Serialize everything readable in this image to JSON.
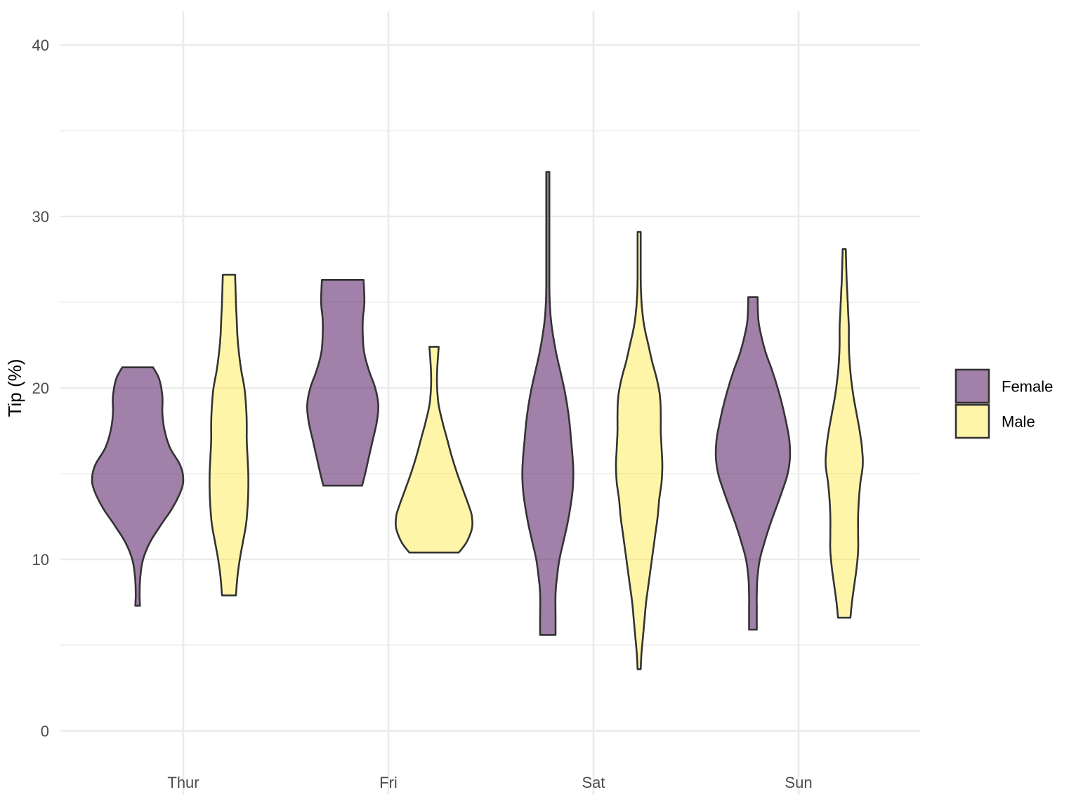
{
  "chart_data": {
    "type": "violin",
    "title": "",
    "xlabel": "",
    "ylabel": "Tip (%)",
    "ylim": [
      -2,
      42
    ],
    "y_ticks": [
      0,
      10,
      20,
      30,
      40
    ],
    "y_minor_ticks": [
      5,
      15,
      25,
      35
    ],
    "categories": [
      "Thur",
      "Fri",
      "Sat",
      "Sun"
    ],
    "grid": true,
    "legend_position": "right",
    "series": [
      {
        "name": "Female",
        "color": "#440154",
        "opacity": 0.5,
        "violins": [
          {
            "category": "Thur",
            "min": 7.3,
            "max": 21.2,
            "profile": [
              [
                7.3,
                0.03
              ],
              [
                8,
                0.025
              ],
              [
                9,
                0.035
              ],
              [
                10,
                0.07
              ],
              [
                11,
                0.16
              ],
              [
                12,
                0.3
              ],
              [
                13,
                0.45
              ],
              [
                14,
                0.56
              ],
              [
                14.7,
                0.59
              ],
              [
                15.5,
                0.55
              ],
              [
                16.5,
                0.42
              ],
              [
                17.5,
                0.35
              ],
              [
                18.5,
                0.32
              ],
              [
                19.5,
                0.32
              ],
              [
                20.5,
                0.28
              ],
              [
                21.2,
                0.2
              ]
            ]
          },
          {
            "category": "Fri",
            "min": 14.3,
            "max": 26.3,
            "profile": [
              [
                14.3,
                0.25
              ],
              [
                15,
                0.29
              ],
              [
                16,
                0.34
              ],
              [
                17,
                0.39
              ],
              [
                18,
                0.44
              ],
              [
                19,
                0.46
              ],
              [
                20,
                0.42
              ],
              [
                21,
                0.34
              ],
              [
                22,
                0.28
              ],
              [
                23,
                0.26
              ],
              [
                24,
                0.26
              ],
              [
                25,
                0.28
              ],
              [
                26.3,
                0.27
              ]
            ]
          },
          {
            "category": "Sat",
            "min": 5.6,
            "max": 32.6,
            "profile": [
              [
                5.6,
                0.1
              ],
              [
                6.5,
                0.1
              ],
              [
                8,
                0.1
              ],
              [
                9,
                0.12
              ],
              [
                10,
                0.15
              ],
              [
                11,
                0.2
              ],
              [
                12,
                0.25
              ],
              [
                13,
                0.29
              ],
              [
                14,
                0.32
              ],
              [
                15,
                0.33
              ],
              [
                16,
                0.32
              ],
              [
                17,
                0.3
              ],
              [
                18,
                0.28
              ],
              [
                19,
                0.25
              ],
              [
                20,
                0.21
              ],
              [
                21,
                0.16
              ],
              [
                22,
                0.11
              ],
              [
                23,
                0.07
              ],
              [
                24,
                0.04
              ],
              [
                25,
                0.025
              ],
              [
                26,
                0.02
              ],
              [
                28,
                0.02
              ],
              [
                30,
                0.02
              ],
              [
                32.6,
                0.02
              ]
            ]
          },
          {
            "category": "Sun",
            "min": 5.9,
            "max": 25.3,
            "profile": [
              [
                5.9,
                0.05
              ],
              [
                7,
                0.05
              ],
              [
                8,
                0.05
              ],
              [
                9,
                0.06
              ],
              [
                10,
                0.09
              ],
              [
                11,
                0.15
              ],
              [
                12,
                0.22
              ],
              [
                13,
                0.3
              ],
              [
                14,
                0.38
              ],
              [
                15,
                0.45
              ],
              [
                16,
                0.48
              ],
              [
                17,
                0.47
              ],
              [
                18,
                0.43
              ],
              [
                19,
                0.38
              ],
              [
                20,
                0.32
              ],
              [
                21,
                0.25
              ],
              [
                22,
                0.17
              ],
              [
                23,
                0.11
              ],
              [
                24,
                0.07
              ],
              [
                25.3,
                0.06
              ]
            ]
          }
        ]
      },
      {
        "name": "Male",
        "color": "#fde725",
        "opacity": 0.4,
        "violins": [
          {
            "category": "Thur",
            "min": 7.9,
            "max": 26.6,
            "profile": [
              [
                7.9,
                0.09
              ],
              [
                9,
                0.11
              ],
              [
                10,
                0.14
              ],
              [
                11,
                0.18
              ],
              [
                12,
                0.22
              ],
              [
                13,
                0.24
              ],
              [
                14,
                0.25
              ],
              [
                15,
                0.25
              ],
              [
                16,
                0.24
              ],
              [
                17,
                0.23
              ],
              [
                18,
                0.23
              ],
              [
                19,
                0.22
              ],
              [
                20,
                0.2
              ],
              [
                21,
                0.16
              ],
              [
                22,
                0.13
              ],
              [
                23,
                0.11
              ],
              [
                24,
                0.1
              ],
              [
                25,
                0.09
              ],
              [
                26.6,
                0.08
              ]
            ]
          },
          {
            "category": "Fri",
            "min": 10.4,
            "max": 22.4,
            "profile": [
              [
                10.4,
                0.32
              ],
              [
                11,
                0.42
              ],
              [
                11.8,
                0.49
              ],
              [
                12.5,
                0.49
              ],
              [
                13,
                0.46
              ],
              [
                14,
                0.38
              ],
              [
                15,
                0.3
              ],
              [
                16,
                0.23
              ],
              [
                17,
                0.17
              ],
              [
                18,
                0.11
              ],
              [
                19,
                0.06
              ],
              [
                20,
                0.04
              ],
              [
                21,
                0.04
              ],
              [
                22.4,
                0.06
              ]
            ]
          },
          {
            "category": "Sat",
            "min": 3.6,
            "max": 29.1,
            "profile": [
              [
                3.6,
                0.02
              ],
              [
                4.5,
                0.03
              ],
              [
                5.5,
                0.05
              ],
              [
                6.5,
                0.07
              ],
              [
                7.5,
                0.09
              ],
              [
                8.5,
                0.12
              ],
              [
                9.5,
                0.15
              ],
              [
                10.5,
                0.18
              ],
              [
                11.5,
                0.21
              ],
              [
                12.5,
                0.24
              ],
              [
                13.5,
                0.26
              ],
              [
                14.5,
                0.29
              ],
              [
                15.5,
                0.3
              ],
              [
                16.5,
                0.29
              ],
              [
                17.5,
                0.28
              ],
              [
                18.5,
                0.28
              ],
              [
                19.5,
                0.27
              ],
              [
                20.5,
                0.23
              ],
              [
                21.5,
                0.17
              ],
              [
                22.5,
                0.12
              ],
              [
                23.5,
                0.07
              ],
              [
                24.5,
                0.04
              ],
              [
                25.5,
                0.025
              ],
              [
                26.5,
                0.02
              ],
              [
                28,
                0.02
              ],
              [
                29.1,
                0.02
              ]
            ]
          },
          {
            "category": "Sun",
            "min": 6.6,
            "max": 28.1,
            "profile": [
              [
                6.6,
                0.08
              ],
              [
                7.5,
                0.1
              ],
              [
                8.5,
                0.13
              ],
              [
                9.5,
                0.16
              ],
              [
                10.5,
                0.18
              ],
              [
                11.5,
                0.18
              ],
              [
                12.5,
                0.18
              ],
              [
                13.5,
                0.19
              ],
              [
                14.5,
                0.21
              ],
              [
                15.5,
                0.24
              ],
              [
                16.5,
                0.23
              ],
              [
                17.5,
                0.2
              ],
              [
                18.5,
                0.16
              ],
              [
                19.5,
                0.12
              ],
              [
                20.5,
                0.09
              ],
              [
                21.5,
                0.07
              ],
              [
                22.5,
                0.06
              ],
              [
                23.5,
                0.06
              ],
              [
                24.5,
                0.05
              ],
              [
                25.5,
                0.04
              ],
              [
                26.5,
                0.03
              ],
              [
                28.1,
                0.02
              ]
            ]
          }
        ]
      }
    ]
  }
}
